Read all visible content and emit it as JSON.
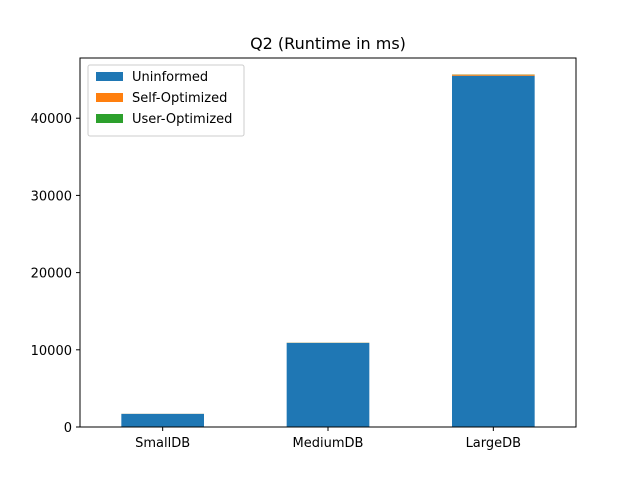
{
  "chart_data": {
    "type": "bar",
    "stacked": true,
    "title": "Q2 (Runtime in ms)",
    "xlabel": "",
    "ylabel": "",
    "categories": [
      "SmallDB",
      "MediumDB",
      "LargeDB"
    ],
    "series": [
      {
        "name": "Uninformed",
        "values": [
          1700,
          10900,
          45500
        ],
        "color": "#1f77b4"
      },
      {
        "name": "Self-Optimized",
        "values": [
          10,
          20,
          150
        ],
        "color": "#ff7f0e"
      },
      {
        "name": "User-Optimized",
        "values": [
          5,
          10,
          20
        ],
        "color": "#2ca02c"
      }
    ],
    "ylim": [
      0,
      47800
    ],
    "yticks": [
      0,
      10000,
      20000,
      30000,
      40000
    ],
    "ytick_labels": [
      "0",
      "10000",
      "20000",
      "30000",
      "40000"
    ],
    "grid": false,
    "legend_position": "top-left"
  }
}
